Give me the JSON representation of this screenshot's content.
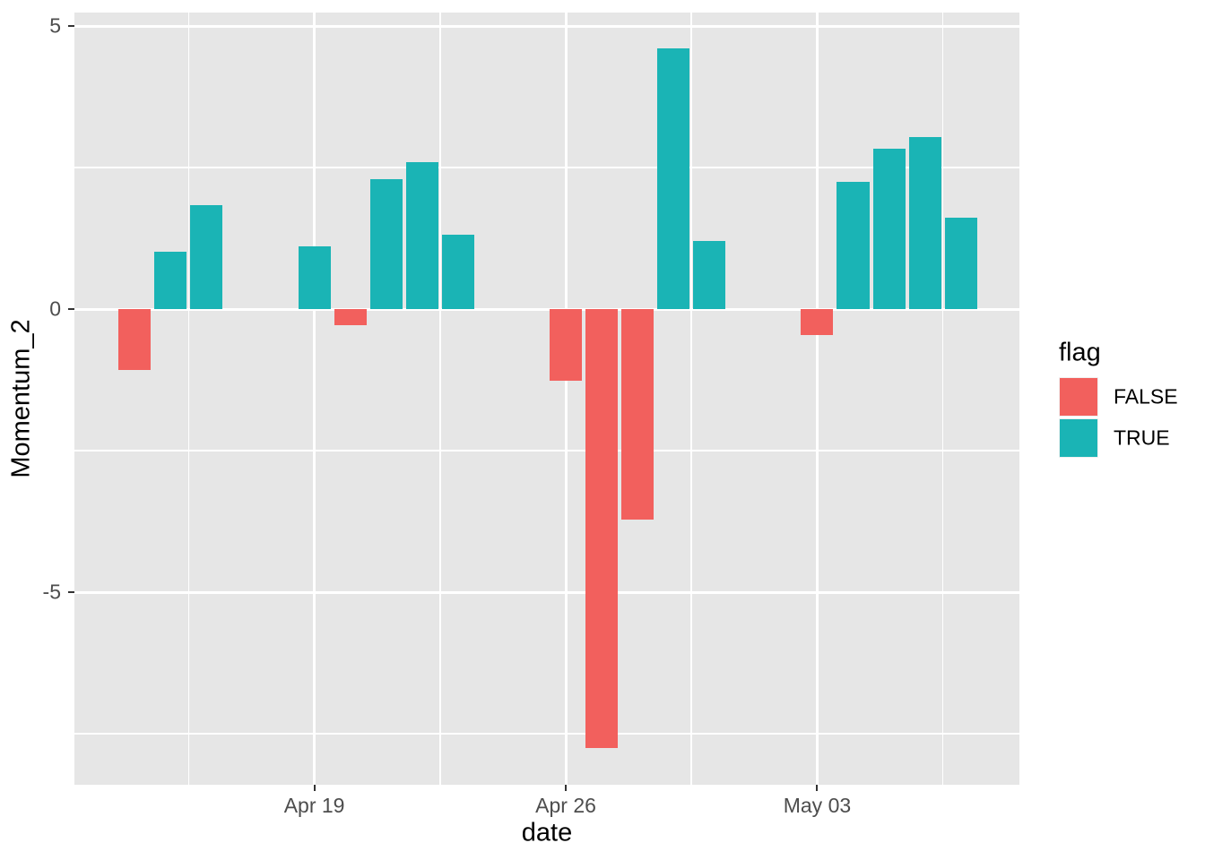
{
  "chart_data": {
    "type": "bar",
    "title": "",
    "xlabel": "date",
    "ylabel": "Momentum_2",
    "grid": true,
    "legend": {
      "title": "flag",
      "position": "right",
      "entries": [
        {
          "label": "FALSE",
          "color": "#F2605D"
        },
        {
          "label": "TRUE",
          "color": "#1AB4B5"
        }
      ]
    },
    "bars": [
      {
        "date": "Apr 14",
        "day": -5,
        "value": -1.07,
        "flag": "FALSE"
      },
      {
        "date": "Apr 15",
        "day": -4,
        "value": 1.01,
        "flag": "TRUE"
      },
      {
        "date": "Apr 16",
        "day": -3,
        "value": 1.84,
        "flag": "TRUE"
      },
      {
        "date": "Apr 19",
        "day": 0,
        "value": 1.11,
        "flag": "TRUE"
      },
      {
        "date": "Apr 20",
        "day": 1,
        "value": -0.28,
        "flag": "FALSE"
      },
      {
        "date": "Apr 21",
        "day": 2,
        "value": 2.29,
        "flag": "TRUE"
      },
      {
        "date": "Apr 22",
        "day": 3,
        "value": 2.6,
        "flag": "TRUE"
      },
      {
        "date": "Apr 23",
        "day": 4,
        "value": 1.31,
        "flag": "TRUE"
      },
      {
        "date": "Apr 26",
        "day": 7,
        "value": -1.27,
        "flag": "FALSE"
      },
      {
        "date": "Apr 27",
        "day": 8,
        "value": -7.75,
        "flag": "FALSE"
      },
      {
        "date": "Apr 28",
        "day": 9,
        "value": -3.72,
        "flag": "FALSE"
      },
      {
        "date": "Apr 29",
        "day": 10,
        "value": 4.6,
        "flag": "TRUE"
      },
      {
        "date": "Apr 30",
        "day": 11,
        "value": 1.2,
        "flag": "TRUE"
      },
      {
        "date": "May 03",
        "day": 14,
        "value": -0.45,
        "flag": "FALSE"
      },
      {
        "date": "May 04",
        "day": 15,
        "value": 2.25,
        "flag": "TRUE"
      },
      {
        "date": "May 05",
        "day": 16,
        "value": 2.83,
        "flag": "TRUE"
      },
      {
        "date": "May 06",
        "day": 17,
        "value": 3.04,
        "flag": "TRUE"
      },
      {
        "date": "May 07",
        "day": 18,
        "value": 1.62,
        "flag": "TRUE"
      }
    ],
    "x_axis": {
      "major_ticks": [
        {
          "label": "Apr 19",
          "day": 0
        },
        {
          "label": "Apr 26",
          "day": 7
        },
        {
          "label": "May 03",
          "day": 14
        }
      ],
      "minor_tick_days": [
        -3.5,
        3.5,
        10.5,
        17.5
      ],
      "lim_days": [
        -6.68,
        19.63
      ]
    },
    "y_axis": {
      "major_ticks": [
        {
          "label": "5",
          "value": 5
        },
        {
          "label": "0",
          "value": 0
        },
        {
          "label": "-5",
          "value": -5
        }
      ],
      "minor_tick_values": [
        2.5,
        -2.5,
        -7.5
      ],
      "lim": [
        -8.4,
        5.24
      ]
    },
    "colors": {
      "FALSE": "#F2605D",
      "TRUE": "#1AB4B5"
    }
  },
  "style_colors": {
    "panel_bg": "#E6E6E6",
    "gridline": "#FFFFFF",
    "tick_text": "#4D4D4D",
    "axis_title_text": "#000000",
    "tick_mark": "#333333",
    "legend_key_bg": "#F0F0F0",
    "outer_bg": "#FFFFFF"
  }
}
